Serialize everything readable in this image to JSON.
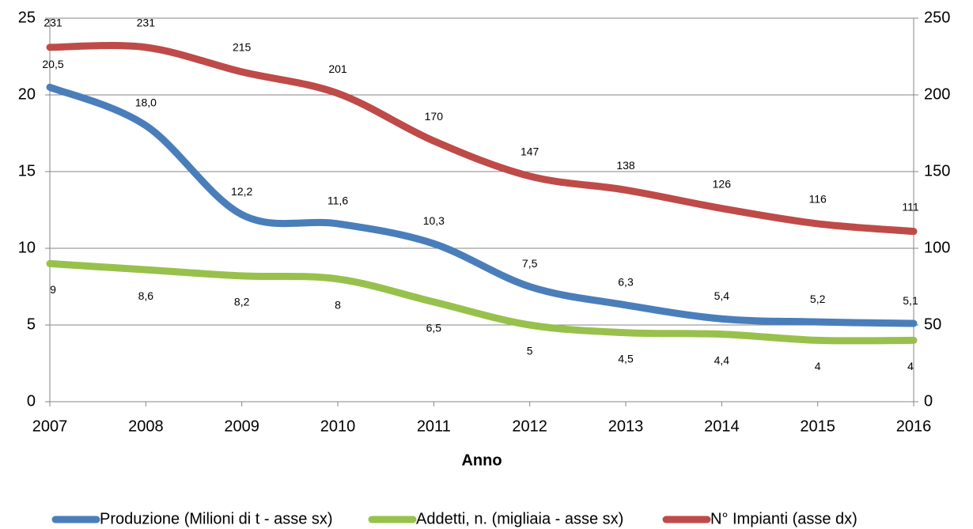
{
  "chart_data": {
    "type": "line",
    "xlabel": "Anno",
    "categories": [
      "2007",
      "2008",
      "2009",
      "2010",
      "2011",
      "2012",
      "2013",
      "2014",
      "2015",
      "2016"
    ],
    "series": [
      {
        "name": "Produzione (Milioni di t - asse sx)",
        "color": "#4a7ebb",
        "values": [
          20.5,
          18.0,
          12.2,
          11.6,
          10.3,
          7.5,
          6.3,
          5.4,
          5.2,
          5.1
        ],
        "value_labels": [
          "20,5",
          "18,0",
          "12,2",
          "11,6",
          "10,3",
          "7,5",
          "6,3",
          "5,4",
          "5,2",
          "5,1"
        ]
      },
      {
        "name": "Addetti, n. (migliaia - asse sx)",
        "color": "#98c14c",
        "values": [
          9,
          8.6,
          8.2,
          8,
          6.5,
          5,
          4.5,
          4.4,
          4,
          4
        ],
        "value_labels": [
          "9",
          "8,6",
          "8,2",
          "8",
          "6,5",
          "5",
          "4,5",
          "4,4",
          "4",
          "4"
        ]
      },
      {
        "name": "N° Impianti (asse dx)",
        "color": "#be4b48",
        "axis": "y2",
        "values": [
          231,
          231,
          215,
          201,
          170,
          147,
          138,
          126,
          116,
          111
        ]
      }
    ],
    "ylim": [
      0,
      25
    ],
    "yticks": [
      0,
      5,
      10,
      15,
      20,
      25
    ],
    "y2lim": [
      0,
      250
    ],
    "y2ticks": [
      0,
      50,
      100,
      150,
      200,
      250
    ],
    "grid": true,
    "legend": "bottom"
  }
}
